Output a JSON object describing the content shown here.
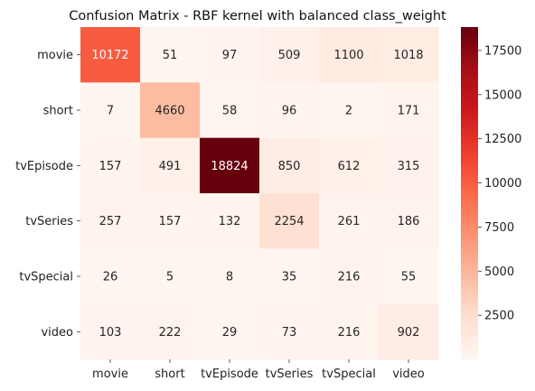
{
  "chart_data": {
    "type": "heatmap",
    "title": "Confusion Matrix - RBF kernel with balanced class_weight",
    "xlabel": "",
    "ylabel": "",
    "x_categories": [
      "movie",
      "short",
      "tvEpisode",
      "tvSeries",
      "tvSpecial",
      "video"
    ],
    "y_categories": [
      "movie",
      "short",
      "tvEpisode",
      "tvSeries",
      "tvSpecial",
      "video"
    ],
    "values": [
      [
        10172,
        51,
        97,
        509,
        1100,
        1018
      ],
      [
        7,
        4660,
        58,
        96,
        2,
        171
      ],
      [
        157,
        491,
        18824,
        850,
        612,
        315
      ],
      [
        257,
        157,
        132,
        2254,
        261,
        186
      ],
      [
        26,
        5,
        8,
        35,
        216,
        55
      ],
      [
        103,
        222,
        29,
        73,
        216,
        902
      ]
    ],
    "colormap": "Reds",
    "color_range": [
      2,
      18824
    ],
    "colorbar": {
      "position": "right",
      "ticks": [
        2500,
        5000,
        7500,
        10000,
        12500,
        15000,
        17500
      ]
    },
    "grid": false
  }
}
